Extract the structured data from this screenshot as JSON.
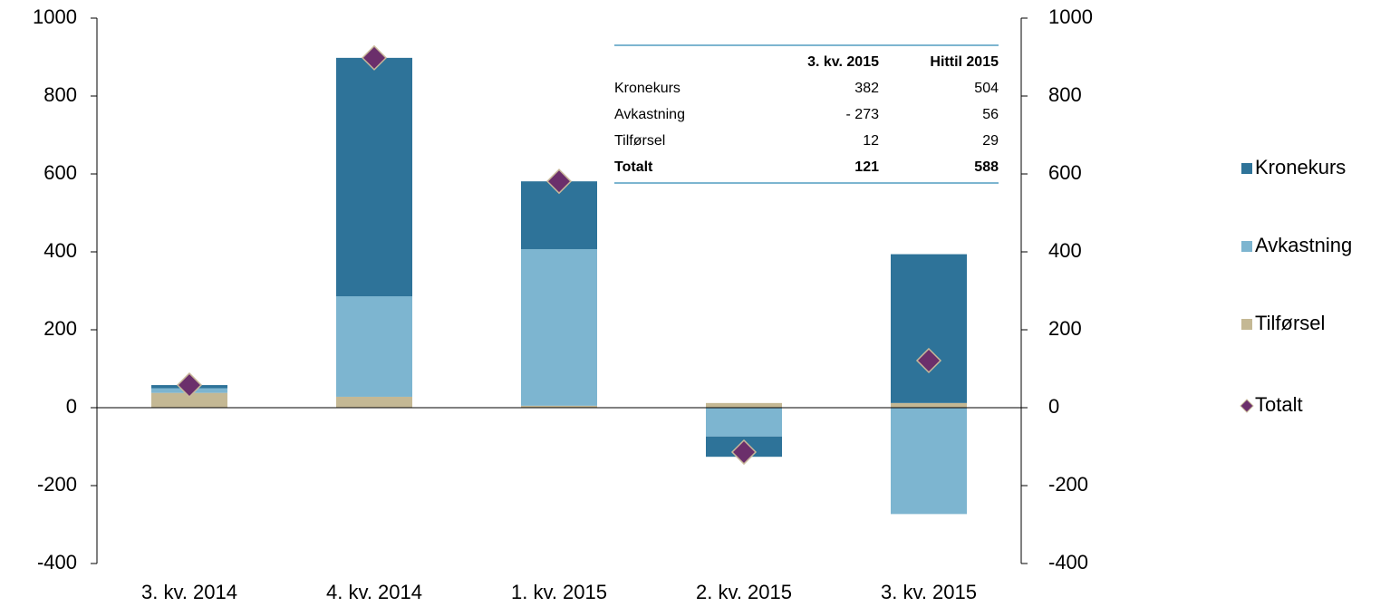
{
  "chart_data": {
    "type": "bar",
    "stacked": true,
    "categories": [
      "3. kv. 2014",
      "4. kv. 2014",
      "1. kv. 2015",
      "2. kv. 2015",
      "3. kv. 2015"
    ],
    "series": [
      {
        "name": "Kronekurs",
        "color": "#2e7399",
        "values": [
          8,
          612,
          174,
          -52,
          382
        ]
      },
      {
        "name": "Avkastning",
        "color": "#7db5d0",
        "values": [
          12,
          258,
          402,
          -74,
          -273
        ]
      },
      {
        "name": "Tilførsel",
        "color": "#c4b894",
        "values": [
          38,
          28,
          5,
          12,
          12
        ]
      },
      {
        "name": "Totalt",
        "type": "marker",
        "color": "#6b2f6b",
        "values": [
          58,
          898,
          581,
          -114,
          121
        ]
      }
    ],
    "ylim": [
      -400,
      1000
    ],
    "yticks": [
      -400,
      -200,
      0,
      200,
      400,
      600,
      800,
      1000
    ],
    "y2lim": [
      -400,
      1000
    ],
    "y2ticks": [
      -400,
      -200,
      0,
      200,
      400,
      600,
      800,
      1000
    ],
    "legend": "right",
    "table": {
      "columns": [
        "3. kv. 2015",
        "Hittil 2015"
      ],
      "rows": [
        [
          "Kronekurs",
          "382",
          "504"
        ],
        [
          "Avkastning",
          "- 273",
          "56"
        ],
        [
          "Tilførsel",
          "12",
          "29"
        ],
        [
          "Totalt",
          "121",
          "588"
        ]
      ]
    }
  }
}
